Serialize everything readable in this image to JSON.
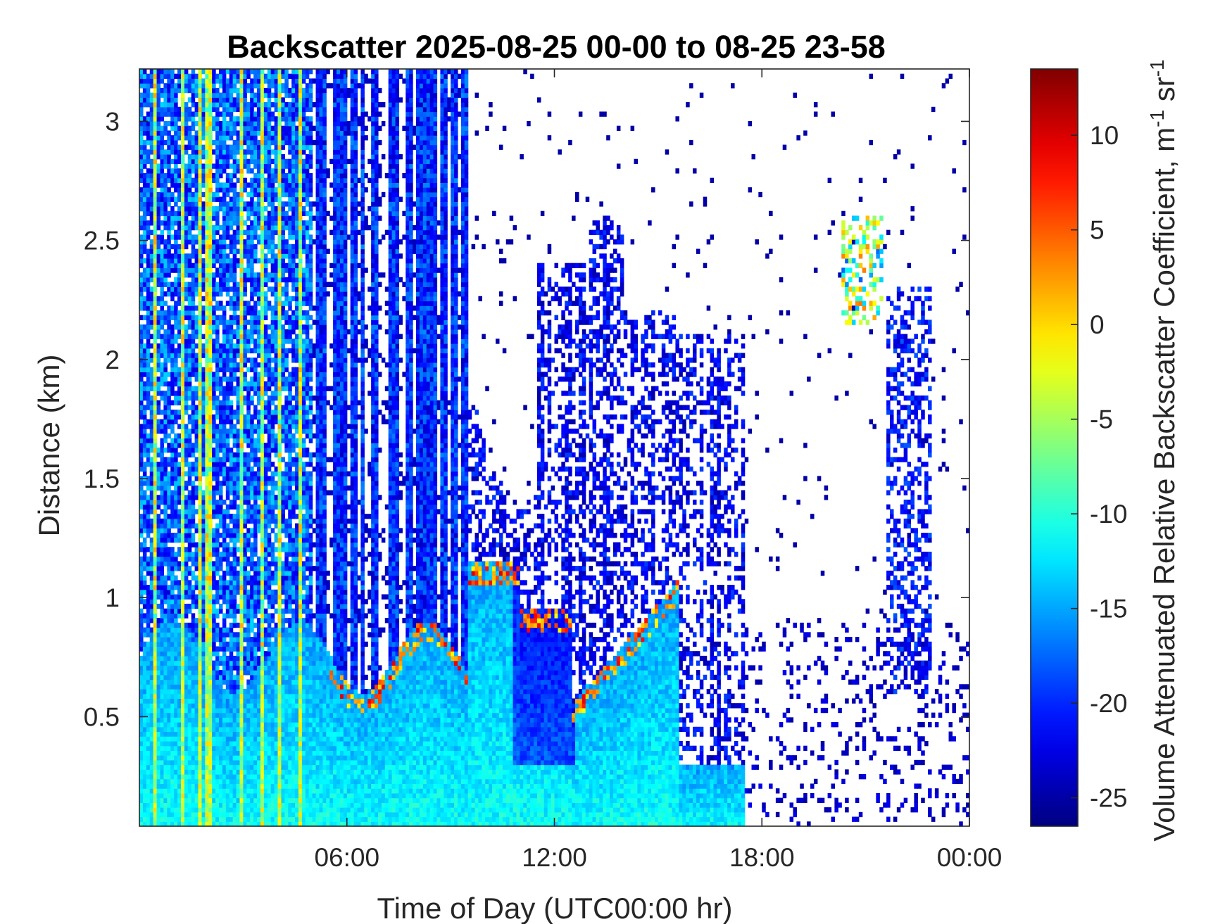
{
  "chart_data": {
    "type": "heatmap",
    "title": "Backscatter 2025-08-25 00-00 to 08-25 23-58",
    "xlabel": "Time of Day (UTC00:00 hr)",
    "ylabel": "Distance (km)",
    "colorbar_label": "Volume Attenuated Relative Backscatter Coefficient, m-1 sr-1",
    "colorbar_label_parts": {
      "base": "Volume Attenuated Relative Backscatter Coefficient, m",
      "exp1": "-1",
      "mid": " sr",
      "exp2": "-1"
    },
    "colormap": "jet",
    "x_unit": "hours UTC",
    "xlim": [
      0,
      24
    ],
    "x_ticks": [
      6,
      12,
      18,
      24
    ],
    "x_tick_labels": [
      "06:00",
      "12:00",
      "18:00",
      "00:00"
    ],
    "ylim": [
      0.04,
      3.22
    ],
    "y_ticks": [
      0.5,
      1,
      1.5,
      2,
      2.5,
      3
    ],
    "y_tick_labels": [
      "0.5",
      "1",
      "1.5",
      "2",
      "2.5",
      "3"
    ],
    "clim": [
      -26.5,
      13.5
    ],
    "colorbar_ticks": [
      -25,
      -20,
      -15,
      -10,
      -5,
      0,
      5,
      10
    ],
    "colorbar_tick_labels": [
      "-25",
      "-20",
      "-15",
      "-10",
      "-5",
      "0",
      "5",
      "10"
    ],
    "grid": false,
    "features": [
      {
        "x_range": [
          0,
          5
        ],
        "y_range": [
          0.04,
          3.22
        ],
        "value_range": [
          -22,
          -8
        ]
      },
      {
        "x_range": [
          5,
          9.5
        ],
        "y_range": [
          0.04,
          1.0
        ],
        "value_range": [
          -16,
          -10
        ]
      },
      {
        "x_range": [
          9.5,
          14
        ],
        "y_range": [
          0.04,
          1.2
        ],
        "value_range": [
          -20,
          -10
        ]
      },
      {
        "x_range": [
          9.7,
          10.3
        ],
        "y_range": [
          0.9,
          1.2
        ],
        "value_range": [
          0,
          10
        ]
      },
      {
        "x_range": [
          12.5,
          15.3
        ],
        "y_range": [
          0.5,
          1.1
        ],
        "value_range": [
          0,
          8
        ]
      },
      {
        "x_range": [
          14,
          17.7
        ],
        "y_range": [
          1.8,
          2.1
        ],
        "value_range": [
          -25,
          -18
        ]
      },
      {
        "x_range": [
          20.4,
          21.4
        ],
        "y_range": [
          2.2,
          2.55
        ],
        "value_range": [
          -20,
          5
        ]
      },
      {
        "x_range": [
          22,
          22.8
        ],
        "y_range": [
          0.6,
          1.7
        ],
        "value_range": [
          -25,
          -18
        ]
      }
    ]
  }
}
